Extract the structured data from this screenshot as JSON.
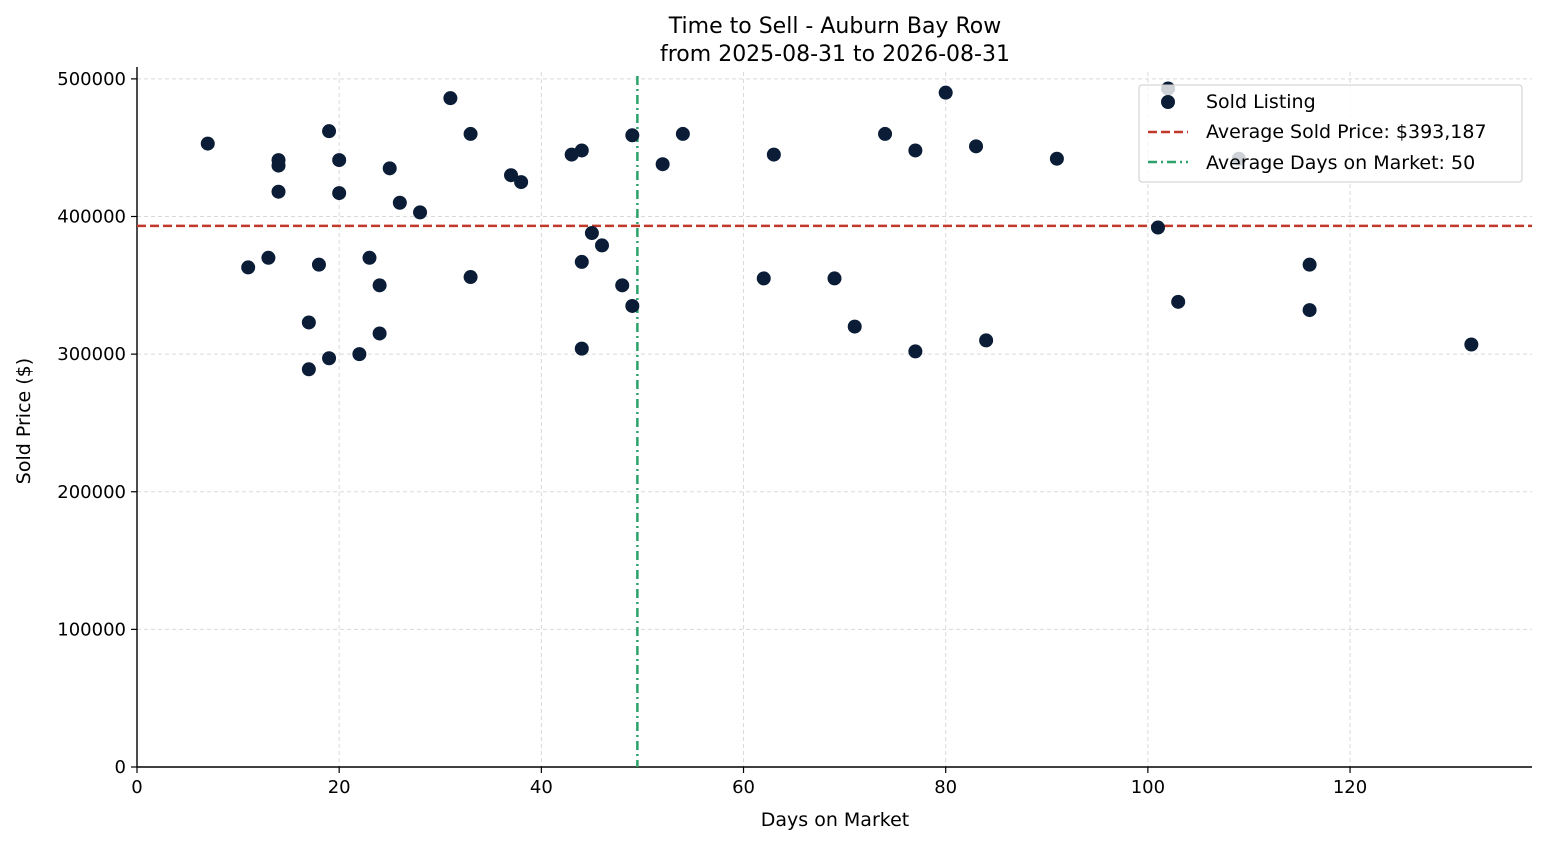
{
  "chart_data": {
    "type": "scatter",
    "title": "Time to Sell - Auburn Bay Row",
    "subtitle": "from 2025-08-31 to 2026-08-31",
    "xlabel": "Days on Market",
    "ylabel": "Sold Price ($)",
    "xlim": [
      0,
      138
    ],
    "ylim": [
      0,
      505000
    ],
    "x_ticks": [
      0,
      20,
      40,
      60,
      80,
      100,
      120
    ],
    "y_ticks": [
      0,
      100000,
      200000,
      300000,
      400000,
      500000
    ],
    "grid": true,
    "legend_position": "top-right",
    "colors": {
      "points": "#0b1d36",
      "avg_price": "#c0392b",
      "avg_days": "#2aa26a"
    },
    "series": [
      {
        "name": "Sold Listing",
        "points": [
          [
            7,
            453000
          ],
          [
            11,
            363000
          ],
          [
            13,
            370000
          ],
          [
            14,
            441000
          ],
          [
            14,
            437000
          ],
          [
            14,
            418000
          ],
          [
            17,
            323000
          ],
          [
            17,
            289000
          ],
          [
            18,
            365000
          ],
          [
            19,
            462000
          ],
          [
            19,
            297000
          ],
          [
            20,
            441000
          ],
          [
            20,
            417000
          ],
          [
            22,
            300000
          ],
          [
            23,
            370000
          ],
          [
            24,
            350000
          ],
          [
            24,
            315000
          ],
          [
            25,
            435000
          ],
          [
            26,
            410000
          ],
          [
            28,
            403000
          ],
          [
            31,
            486000
          ],
          [
            33,
            460000
          ],
          [
            33,
            356000
          ],
          [
            37,
            430000
          ],
          [
            38,
            425000
          ],
          [
            43,
            445000
          ],
          [
            44,
            448000
          ],
          [
            44,
            367000
          ],
          [
            44,
            304000
          ],
          [
            45,
            388000
          ],
          [
            46,
            379000
          ],
          [
            48,
            350000
          ],
          [
            49,
            459000
          ],
          [
            49,
            335000
          ],
          [
            52,
            438000
          ],
          [
            54,
            460000
          ],
          [
            62,
            355000
          ],
          [
            63,
            445000
          ],
          [
            69,
            355000
          ],
          [
            71,
            320000
          ],
          [
            74,
            460000
          ],
          [
            77,
            448000
          ],
          [
            77,
            302000
          ],
          [
            80,
            490000
          ],
          [
            83,
            451000
          ],
          [
            84,
            310000
          ],
          [
            91,
            442000
          ],
          [
            101,
            392000
          ],
          [
            102,
            493000
          ],
          [
            103,
            338000
          ],
          [
            109,
            442000
          ],
          [
            116,
            365000
          ],
          [
            116,
            332000
          ],
          [
            132,
            307000
          ]
        ]
      }
    ],
    "reference_lines": {
      "avg_price": {
        "label": "Average Sold Price: $393,187",
        "value": 393187
      },
      "avg_days": {
        "label": "Average Days on Market: 50",
        "value": 49.5
      }
    }
  }
}
